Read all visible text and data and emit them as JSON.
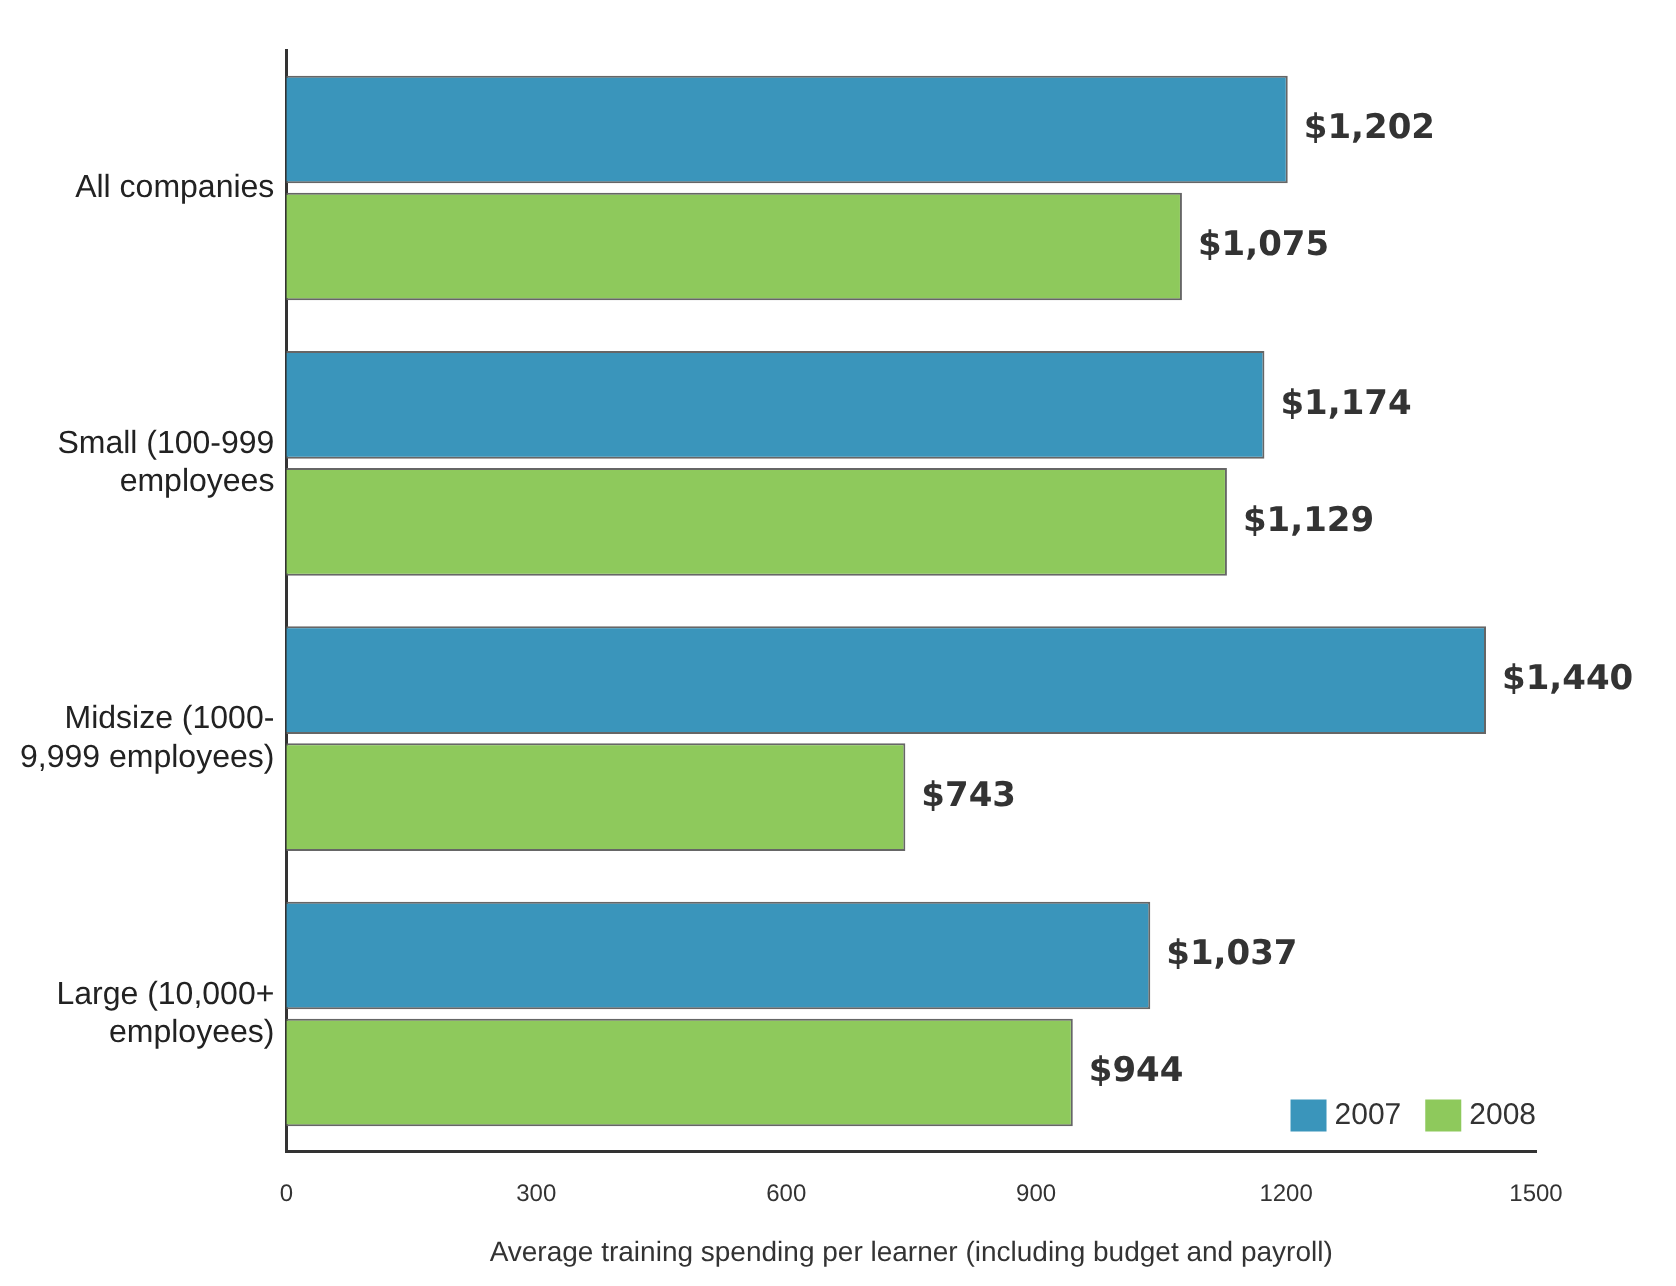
{
  "chart_data": {
    "type": "bar",
    "orientation": "horizontal",
    "xlabel": "Average training spending per learner (including budget and payroll)",
    "categories": [
      "All companies",
      "Small (100-999\nemployees",
      "Midsize (1000-\n9,999 employees)",
      "Large (10,000+\nemployees)"
    ],
    "series": [
      {
        "name": "2007",
        "color": "#3a95bb",
        "values": [
          1202,
          1174,
          1440,
          1037
        ],
        "value_labels": [
          "$1,202",
          "$1,174",
          "$1,440",
          "$1,037"
        ]
      },
      {
        "name": "2008",
        "color": "#8ec95c",
        "values": [
          1075,
          1129,
          743,
          944
        ],
        "value_labels": [
          "$1,075",
          "$1,129",
          "$743",
          "$944"
        ]
      }
    ],
    "xlim": [
      0,
      1500
    ],
    "xticks": [
      0,
      300,
      600,
      900,
      1200,
      1500
    ],
    "grid": false,
    "legend": "bottom right"
  }
}
